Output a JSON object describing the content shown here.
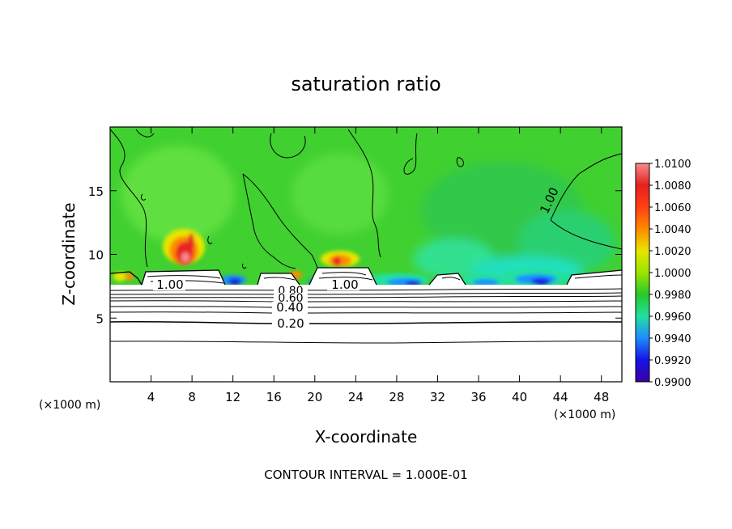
{
  "chart_data": {
    "type": "heatmap",
    "title": "saturation ratio",
    "xlabel": "X-coordinate",
    "ylabel": "Z-coordinate",
    "x_unit": "(×1000 m)",
    "y_unit": "(×1000 m)",
    "xlim": [
      0,
      50
    ],
    "ylim": [
      0,
      20
    ],
    "x_ticks": [
      4,
      8,
      12,
      16,
      20,
      24,
      28,
      32,
      36,
      40,
      44,
      48
    ],
    "y_ticks": [
      5,
      10,
      15
    ],
    "footer": "CONTOUR INTERVAL = 1.000E-01",
    "contour_interval": 0.1,
    "contour_labels": [
      {
        "text": "1.00",
        "x": 6.0,
        "z": 7.7
      },
      {
        "text": "1.00",
        "x": 23.0,
        "z": 7.7
      },
      {
        "text": "0.80",
        "x": 17.8,
        "z": 7.2
      },
      {
        "text": "0.60",
        "x": 17.8,
        "z": 6.8
      },
      {
        "text": "0.40",
        "x": 17.5,
        "z": 6.0
      },
      {
        "text": "0.20",
        "x": 17.5,
        "z": 4.7
      },
      {
        "text": "1.00",
        "x": 43.5,
        "z": 13.8
      }
    ],
    "colorbar": {
      "labels": [
        "1.0100",
        "1.0080",
        "1.0060",
        "1.0040",
        "1.0020",
        "1.0000",
        "0.9980",
        "0.9960",
        "0.9940",
        "0.9920",
        "0.9900"
      ],
      "colors": [
        "#f58c8c",
        "#e62020",
        "#ff4010",
        "#ff8a00",
        "#e6e600",
        "#9be600",
        "#28c828",
        "#20e0a0",
        "#1e8cff",
        "#1414e6",
        "#3c00a0"
      ]
    },
    "field_colors": {
      "background": "#40d030",
      "dry_layer": "#ffffff",
      "contour": "#000000"
    }
  }
}
